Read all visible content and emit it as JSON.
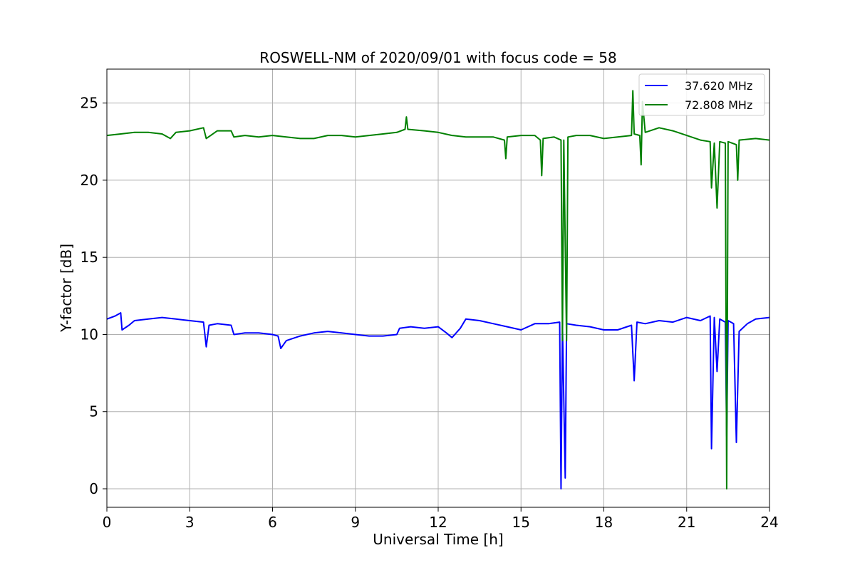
{
  "chart_data": {
    "type": "line",
    "title": "ROSWELL-NM of 2020/09/01 with focus code = 58",
    "xlabel": "Universal Time [h]",
    "ylabel": "Y-factor [dB]",
    "xlim": [
      0,
      24
    ],
    "ylim": [
      -1.2,
      27.2
    ],
    "xticks": [
      0,
      3,
      6,
      9,
      12,
      15,
      18,
      21,
      24
    ],
    "yticks": [
      0,
      5,
      10,
      15,
      20,
      25
    ],
    "grid": true,
    "legend_position": "top-right",
    "series": [
      {
        "name": "37.620 MHz",
        "color": "#0000ff",
        "points": [
          [
            0.0,
            11.0
          ],
          [
            0.3,
            11.2
          ],
          [
            0.5,
            11.4
          ],
          [
            0.55,
            10.3
          ],
          [
            0.8,
            10.6
          ],
          [
            1.0,
            10.9
          ],
          [
            1.5,
            11.0
          ],
          [
            2.0,
            11.1
          ],
          [
            2.5,
            11.0
          ],
          [
            3.0,
            10.9
          ],
          [
            3.5,
            10.8
          ],
          [
            3.6,
            9.2
          ],
          [
            3.7,
            10.6
          ],
          [
            4.0,
            10.7
          ],
          [
            4.5,
            10.6
          ],
          [
            4.6,
            10.0
          ],
          [
            5.0,
            10.1
          ],
          [
            5.5,
            10.1
          ],
          [
            6.0,
            10.0
          ],
          [
            6.2,
            9.9
          ],
          [
            6.3,
            9.1
          ],
          [
            6.5,
            9.6
          ],
          [
            7.0,
            9.9
          ],
          [
            7.5,
            10.1
          ],
          [
            8.0,
            10.2
          ],
          [
            8.5,
            10.1
          ],
          [
            9.0,
            10.0
          ],
          [
            9.5,
            9.9
          ],
          [
            10.0,
            9.9
          ],
          [
            10.5,
            10.0
          ],
          [
            10.6,
            10.4
          ],
          [
            11.0,
            10.5
          ],
          [
            11.5,
            10.4
          ],
          [
            12.0,
            10.5
          ],
          [
            12.3,
            10.1
          ],
          [
            12.5,
            9.8
          ],
          [
            12.8,
            10.4
          ],
          [
            13.0,
            11.0
          ],
          [
            13.5,
            10.9
          ],
          [
            14.0,
            10.7
          ],
          [
            14.5,
            10.5
          ],
          [
            15.0,
            10.3
          ],
          [
            15.5,
            10.7
          ],
          [
            16.0,
            10.7
          ],
          [
            16.4,
            10.8
          ],
          [
            16.45,
            0.0
          ],
          [
            16.5,
            10.6
          ],
          [
            16.6,
            0.7
          ],
          [
            16.65,
            10.7
          ],
          [
            17.0,
            10.6
          ],
          [
            17.5,
            10.5
          ],
          [
            18.0,
            10.3
          ],
          [
            18.5,
            10.3
          ],
          [
            19.0,
            10.6
          ],
          [
            19.1,
            7.0
          ],
          [
            19.2,
            10.8
          ],
          [
            19.5,
            10.7
          ],
          [
            20.0,
            10.9
          ],
          [
            20.5,
            10.8
          ],
          [
            21.0,
            11.1
          ],
          [
            21.5,
            10.9
          ],
          [
            21.85,
            11.2
          ],
          [
            21.9,
            2.6
          ],
          [
            22.0,
            11.1
          ],
          [
            22.1,
            7.6
          ],
          [
            22.2,
            11.0
          ],
          [
            22.4,
            10.8
          ],
          [
            22.45,
            3.4
          ],
          [
            22.5,
            10.9
          ],
          [
            22.7,
            10.7
          ],
          [
            22.8,
            3.0
          ],
          [
            22.9,
            10.2
          ],
          [
            23.2,
            10.7
          ],
          [
            23.5,
            11.0
          ],
          [
            24.0,
            11.1
          ]
        ]
      },
      {
        "name": "72.808 MHz",
        "color": "#008000",
        "points": [
          [
            0.0,
            22.9
          ],
          [
            0.5,
            23.0
          ],
          [
            1.0,
            23.1
          ],
          [
            1.5,
            23.1
          ],
          [
            2.0,
            23.0
          ],
          [
            2.3,
            22.7
          ],
          [
            2.5,
            23.1
          ],
          [
            3.0,
            23.2
          ],
          [
            3.5,
            23.4
          ],
          [
            3.6,
            22.7
          ],
          [
            4.0,
            23.2
          ],
          [
            4.5,
            23.2
          ],
          [
            4.6,
            22.8
          ],
          [
            5.0,
            22.9
          ],
          [
            5.5,
            22.8
          ],
          [
            6.0,
            22.9
          ],
          [
            6.5,
            22.8
          ],
          [
            7.0,
            22.7
          ],
          [
            7.5,
            22.7
          ],
          [
            8.0,
            22.9
          ],
          [
            8.5,
            22.9
          ],
          [
            9.0,
            22.8
          ],
          [
            9.5,
            22.9
          ],
          [
            10.0,
            23.0
          ],
          [
            10.5,
            23.1
          ],
          [
            10.8,
            23.3
          ],
          [
            10.85,
            24.1
          ],
          [
            10.9,
            23.3
          ],
          [
            11.5,
            23.2
          ],
          [
            12.0,
            23.1
          ],
          [
            12.5,
            22.9
          ],
          [
            13.0,
            22.8
          ],
          [
            13.5,
            22.8
          ],
          [
            14.0,
            22.8
          ],
          [
            14.4,
            22.6
          ],
          [
            14.45,
            21.4
          ],
          [
            14.5,
            22.8
          ],
          [
            15.0,
            22.9
          ],
          [
            15.5,
            22.9
          ],
          [
            15.7,
            22.6
          ],
          [
            15.75,
            20.3
          ],
          [
            15.8,
            22.7
          ],
          [
            16.2,
            22.8
          ],
          [
            16.45,
            22.6
          ],
          [
            16.5,
            9.6
          ],
          [
            16.55,
            22.6
          ],
          [
            16.65,
            9.6
          ],
          [
            16.7,
            22.8
          ],
          [
            17.0,
            22.9
          ],
          [
            17.5,
            22.9
          ],
          [
            18.0,
            22.7
          ],
          [
            18.5,
            22.8
          ],
          [
            19.0,
            22.9
          ],
          [
            19.05,
            25.8
          ],
          [
            19.1,
            23.0
          ],
          [
            19.3,
            22.9
          ],
          [
            19.35,
            21.0
          ],
          [
            19.4,
            25.1
          ],
          [
            19.5,
            23.1
          ],
          [
            20.0,
            23.4
          ],
          [
            20.5,
            23.2
          ],
          [
            21.0,
            22.9
          ],
          [
            21.5,
            22.6
          ],
          [
            21.85,
            22.5
          ],
          [
            21.9,
            19.5
          ],
          [
            22.0,
            22.4
          ],
          [
            22.1,
            18.2
          ],
          [
            22.2,
            22.5
          ],
          [
            22.4,
            22.4
          ],
          [
            22.45,
            0.0
          ],
          [
            22.5,
            22.5
          ],
          [
            22.8,
            22.3
          ],
          [
            22.85,
            20.0
          ],
          [
            22.9,
            22.6
          ],
          [
            23.5,
            22.7
          ],
          [
            24.0,
            22.6
          ]
        ]
      }
    ]
  }
}
